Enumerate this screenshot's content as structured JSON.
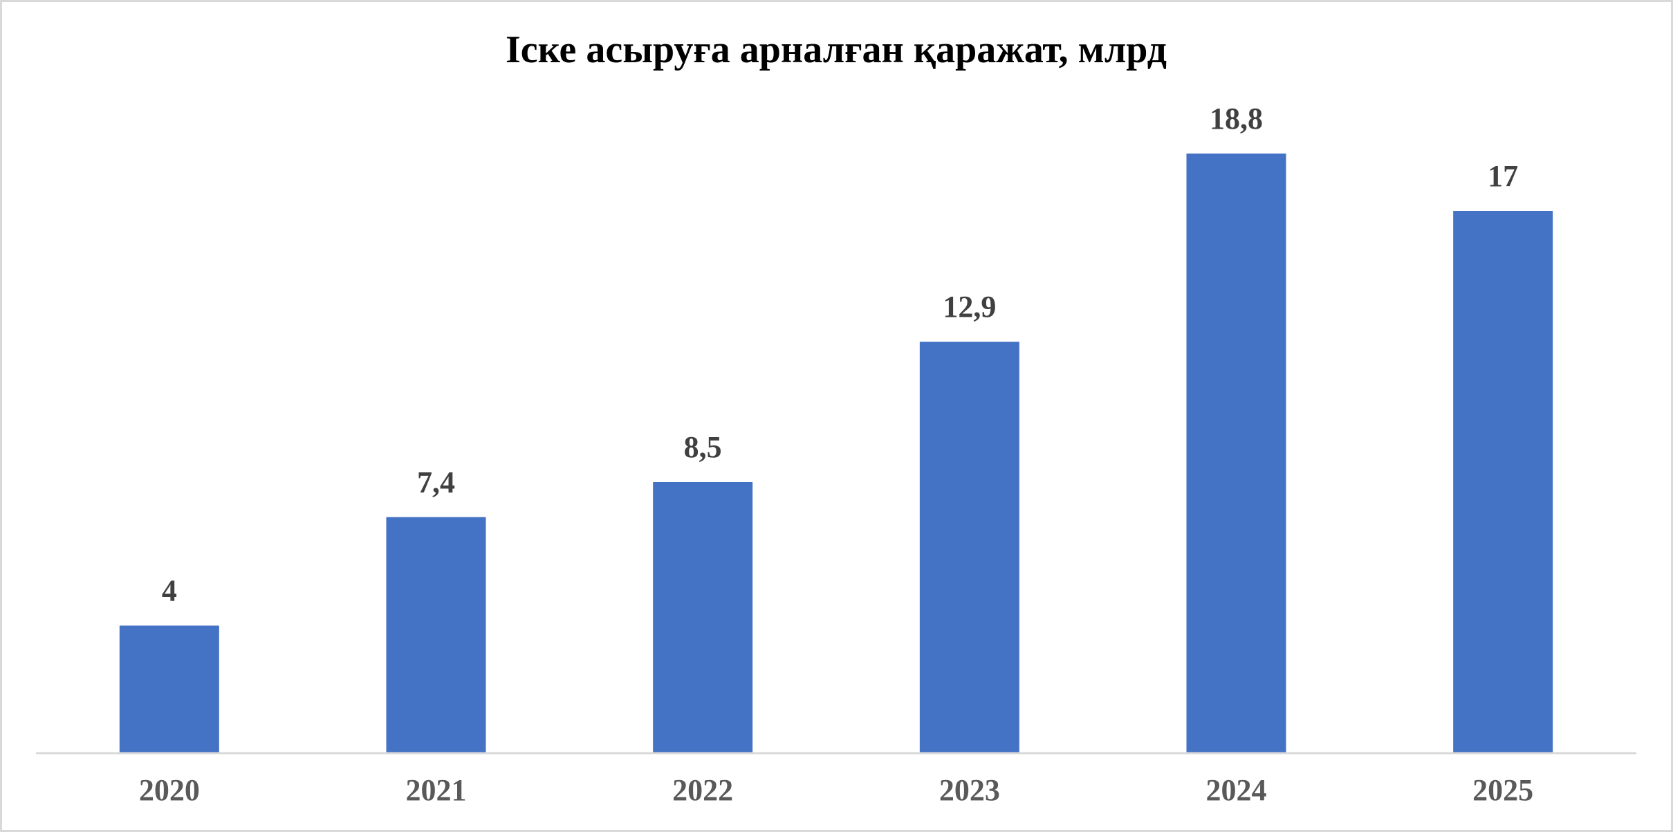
{
  "chart_data": {
    "type": "bar",
    "title": "Іске асыруға арналған қаражат, млрд",
    "categories": [
      "2020",
      "2021",
      "2022",
      "2023",
      "2024",
      "2025"
    ],
    "values": [
      4,
      7.4,
      8.5,
      12.9,
      18.8,
      17
    ],
    "value_labels": [
      "4",
      "7,4",
      "8,5",
      "12,9",
      "18,8",
      "17"
    ],
    "color": "#4472c4"
  }
}
